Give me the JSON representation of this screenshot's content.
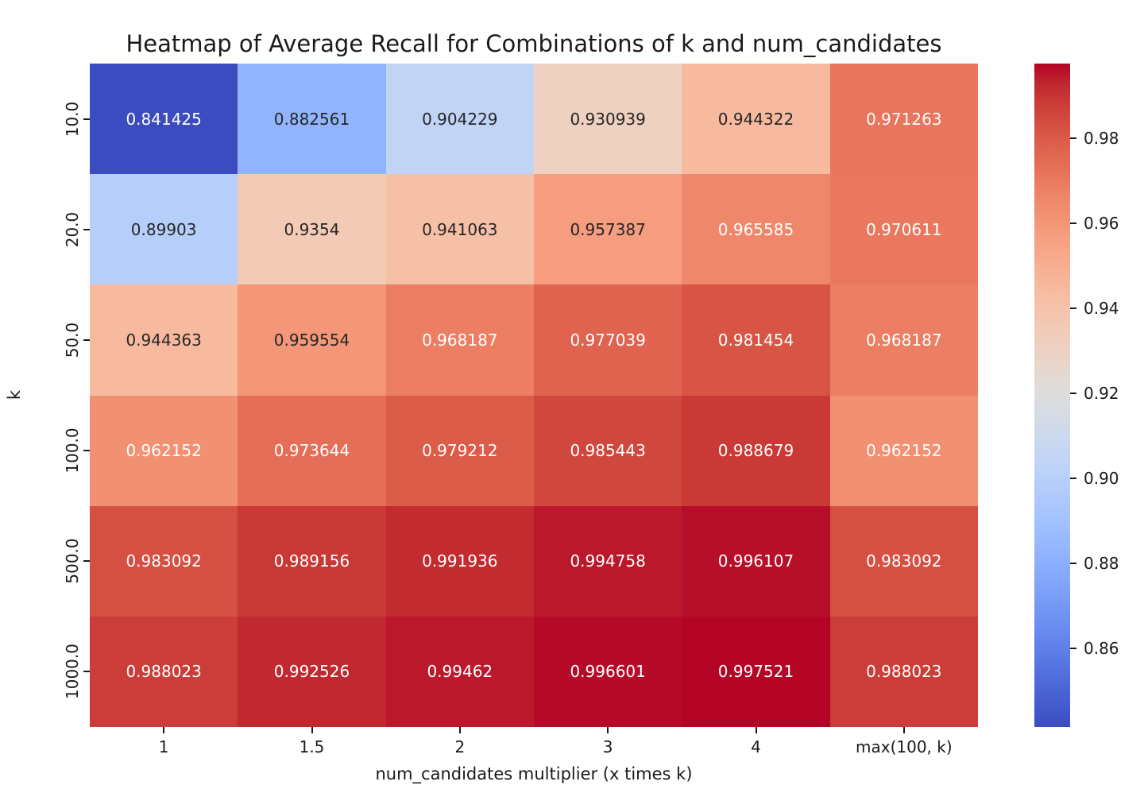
{
  "chart_data": {
    "type": "heatmap",
    "title": "Heatmap of Average Recall for Combinations of k and num_candidates",
    "xlabel": "num_candidates multiplier (x times k)",
    "ylabel": "k",
    "x_categories": [
      "1",
      "1.5",
      "2",
      "3",
      "4",
      "max(100, k)"
    ],
    "y_categories": [
      "10.0",
      "20.0",
      "50.0",
      "100.0",
      "500.0",
      "1000.0"
    ],
    "values": [
      [
        0.841425,
        0.882561,
        0.904229,
        0.930939,
        0.944322,
        0.971263
      ],
      [
        0.89903,
        0.9354,
        0.941063,
        0.957387,
        0.965585,
        0.970611
      ],
      [
        0.944363,
        0.959554,
        0.968187,
        0.977039,
        0.981454,
        0.968187
      ],
      [
        0.962152,
        0.973644,
        0.979212,
        0.985443,
        0.988679,
        0.962152
      ],
      [
        0.983092,
        0.989156,
        0.991936,
        0.994758,
        0.996107,
        0.983092
      ],
      [
        0.988023,
        0.992526,
        0.99462,
        0.996601,
        0.997521,
        0.988023
      ]
    ],
    "vmin": 0.841425,
    "vmax": 0.997521,
    "colorbar_ticks": [
      "0.98",
      "0.96",
      "0.94",
      "0.92",
      "0.90",
      "0.88",
      "0.86"
    ],
    "colormap": {
      "name": "coolwarm",
      "stops": [
        [
          59,
          76,
          192
        ],
        [
          68,
          90,
          204
        ],
        [
          77,
          104,
          215
        ],
        [
          87,
          117,
          225
        ],
        [
          98,
          130,
          234
        ],
        [
          108,
          142,
          241
        ],
        [
          119,
          154,
          247
        ],
        [
          130,
          165,
          251
        ],
        [
          141,
          176,
          254
        ],
        [
          152,
          185,
          255
        ],
        [
          163,
          194,
          255
        ],
        [
          174,
          201,
          253
        ],
        [
          184,
          208,
          249
        ],
        [
          194,
          213,
          244
        ],
        [
          204,
          217,
          238
        ],
        [
          213,
          219,
          230
        ],
        [
          221,
          221,
          221
        ],
        [
          229,
          216,
          209
        ],
        [
          236,
          211,
          197
        ],
        [
          241,
          204,
          185
        ],
        [
          245,
          196,
          173
        ],
        [
          247,
          187,
          160
        ],
        [
          247,
          177,
          148
        ],
        [
          247,
          166,
          135
        ],
        [
          244,
          154,
          123
        ],
        [
          241,
          141,
          111
        ],
        [
          236,
          127,
          99
        ],
        [
          229,
          112,
          88
        ],
        [
          222,
          96,
          77
        ],
        [
          213,
          80,
          66
        ],
        [
          203,
          62,
          56
        ],
        [
          192,
          40,
          47
        ],
        [
          180,
          4,
          38
        ]
      ]
    },
    "annotation_dark_color": "#262626",
    "annotation_light_color": "#ffffff",
    "legend_position": "right",
    "grid": false
  }
}
